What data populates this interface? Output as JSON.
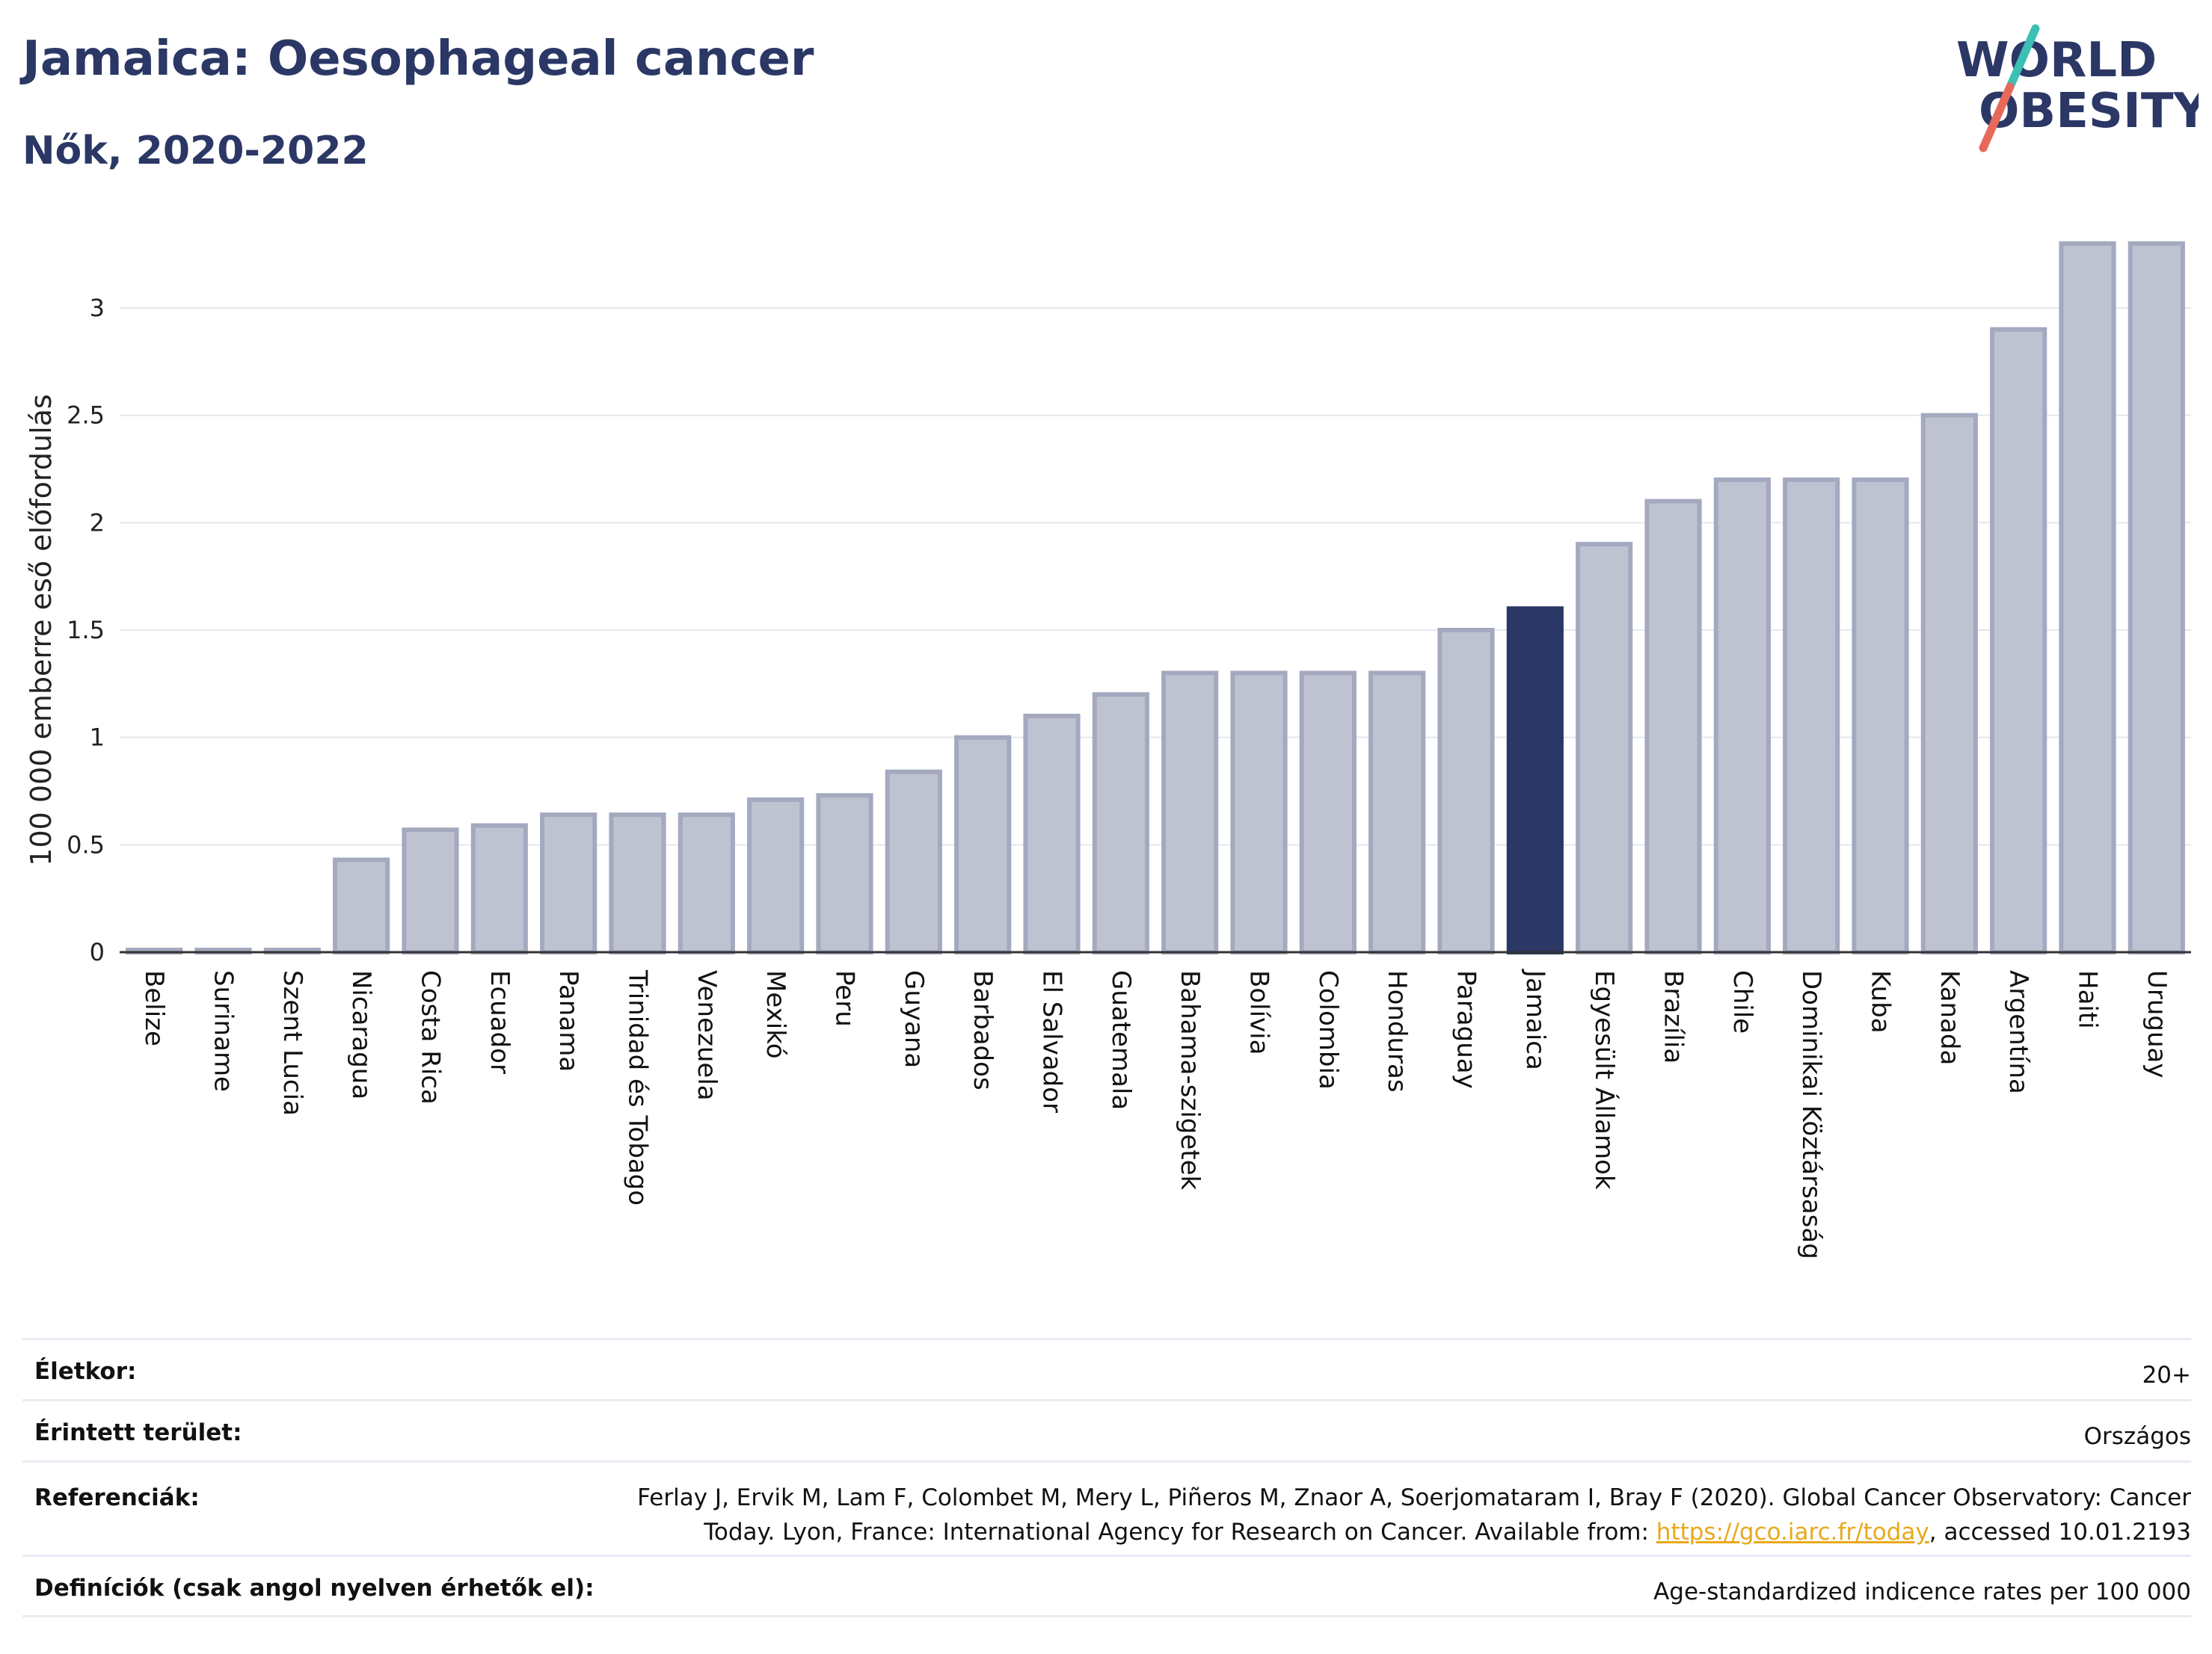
{
  "header": {
    "title": "Jamaica: Oesophageal cancer",
    "subtitle": "Nők, 2020-2022"
  },
  "logo": {
    "line1": "WORLD",
    "line2": "OBESITY"
  },
  "colors": {
    "bar": "#bfc3d1",
    "bar_border": "#a4a9bf",
    "highlight": "#2b3765",
    "title": "#2b3765",
    "logo_slash_teal": "#3cbfb4",
    "logo_slash_red": "#e8685a"
  },
  "chart_data": {
    "type": "bar",
    "ylabel": "100 000 emberre eső előfordulás",
    "ylim": [
      0,
      3.35
    ],
    "yticks": [
      0,
      0.5,
      1,
      1.5,
      2,
      2.5,
      3
    ],
    "ytick_labels": [
      "0",
      "0.5",
      "1",
      "1.5",
      "2",
      "2.5",
      "3"
    ],
    "grid": true,
    "highlight": "Jamaica",
    "categories": [
      "Belize",
      "Suriname",
      "Szent Lucia",
      "Nicaragua",
      "Costa Rica",
      "Ecuador",
      "Panama",
      "Trinidad és Tobago",
      "Venezuela",
      "Mexikó",
      "Peru",
      "Guyana",
      "Barbados",
      "El Salvador",
      "Guatemala",
      "Bahama-szigetek",
      "Bolívia",
      "Colombia",
      "Honduras",
      "Paraguay",
      "Jamaica",
      "Egyesült Államok",
      "Brazília",
      "Chile",
      "Dominikai Köztársaság",
      "Kuba",
      "Kanada",
      "Argentína",
      "Haiti",
      "Uruguay"
    ],
    "values": [
      0.0,
      0.0,
      0.0,
      0.43,
      0.57,
      0.59,
      0.64,
      0.64,
      0.64,
      0.71,
      0.73,
      0.84,
      1.0,
      1.1,
      1.2,
      1.3,
      1.3,
      1.3,
      1.3,
      1.5,
      1.6,
      1.9,
      2.1,
      2.2,
      2.2,
      2.2,
      2.5,
      2.9,
      3.3,
      3.3
    ]
  },
  "info": {
    "age_label": "Életkor:",
    "age_value": "20+",
    "area_label": "Érintett terület:",
    "area_value": "Országos",
    "ref_label": "Referenciák:",
    "ref_line1": "Ferlay J, Ervik M, Lam F, Colombet M, Mery L, Piñeros M, Znaor A, Soerjomataram I, Bray F (2020). Global Cancer Observatory: Cancer",
    "ref_line2_pre": "Today. Lyon, France: International Agency for Research on Cancer. Available from: ",
    "ref_link": "https://gco.iarc.fr/today",
    "ref_line2_post": ", accessed 10.01.2193",
    "def_label": "Definíciók (csak angol nyelven érhetők el):",
    "def_value": "Age-standardized indicence rates per 100 000"
  }
}
